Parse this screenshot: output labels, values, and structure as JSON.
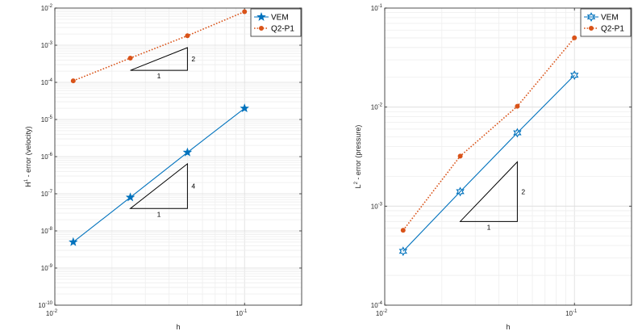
{
  "chart_data": [
    {
      "type": "line",
      "xscale": "log",
      "yscale": "log",
      "xlim": [
        0.01,
        0.2
      ],
      "ylim": [
        1e-10,
        0.01
      ],
      "grid": true,
      "xlabel": "h",
      "ylabel": "H1 - error (velocity)",
      "ylabel_base": "H",
      "ylabel_sup": "1",
      "ylabel_rest": " - error (velocity)",
      "legend_position": "top-right",
      "x_ticks": [
        {
          "mant": "10",
          "exp": "-2"
        },
        {
          "mant": "10",
          "exp": "-1"
        }
      ],
      "y_ticks": [
        {
          "mant": "10",
          "exp": "-10"
        },
        {
          "mant": "10",
          "exp": "-9"
        },
        {
          "mant": "10",
          "exp": "-8"
        },
        {
          "mant": "10",
          "exp": "-7"
        },
        {
          "mant": "10",
          "exp": "-6"
        },
        {
          "mant": "10",
          "exp": "-5"
        },
        {
          "mant": "10",
          "exp": "-4"
        },
        {
          "mant": "10",
          "exp": "-3"
        },
        {
          "mant": "10",
          "exp": "-2"
        }
      ],
      "series": [
        {
          "name": "VEM",
          "marker": "pentagram",
          "line": "solid",
          "color": "#0072BD",
          "x": [
            0.0125,
            0.025,
            0.05,
            0.1
          ],
          "y": [
            5e-09,
            8e-08,
            1.3e-06,
            2e-05
          ]
        },
        {
          "name": "Q2-P1",
          "marker": "circle",
          "line": "dotted",
          "color": "#D95319",
          "x": [
            0.0125,
            0.025,
            0.05,
            0.1
          ],
          "y": [
            0.00011,
            0.00045,
            0.0018,
            0.008
          ]
        }
      ],
      "slope_triangles": [
        {
          "x0": 0.025,
          "x1": 0.05,
          "y0": 0.00021,
          "y1": 0.00086,
          "run_label": "1",
          "rise_label": "2"
        },
        {
          "x0": 0.025,
          "x1": 0.05,
          "y0": 4e-08,
          "y1": 6.4e-07,
          "run_label": "1",
          "rise_label": "4"
        }
      ]
    },
    {
      "type": "line",
      "xscale": "log",
      "yscale": "log",
      "xlim": [
        0.01,
        0.2
      ],
      "ylim": [
        0.0001,
        0.1
      ],
      "grid": true,
      "xlabel": "h",
      "ylabel": "L2 - error (pressure)",
      "ylabel_base": "L",
      "ylabel_sup": "2",
      "ylabel_rest": " - error (pressure)",
      "legend_position": "top-right",
      "x_ticks": [
        {
          "mant": "10",
          "exp": "-2"
        },
        {
          "mant": "10",
          "exp": "-1"
        }
      ],
      "y_ticks": [
        {
          "mant": "10",
          "exp": "-4"
        },
        {
          "mant": "10",
          "exp": "-3"
        },
        {
          "mant": "10",
          "exp": "-2"
        },
        {
          "mant": "10",
          "exp": "-1"
        }
      ],
      "series": [
        {
          "name": "VEM",
          "marker": "hexagram",
          "line": "solid",
          "color": "#0072BD",
          "x": [
            0.0125,
            0.025,
            0.05,
            0.1
          ],
          "y": [
            0.00035,
            0.0014,
            0.0055,
            0.021
          ]
        },
        {
          "name": "Q2-P1",
          "marker": "circle",
          "line": "dotted",
          "color": "#D95319",
          "x": [
            0.0125,
            0.025,
            0.05,
            0.1
          ],
          "y": [
            0.00057,
            0.0032,
            0.0102,
            0.05
          ]
        }
      ],
      "slope_triangles": [
        {
          "x0": 0.025,
          "x1": 0.05,
          "y0": 0.0007,
          "y1": 0.0028,
          "run_label": "1",
          "rise_label": "2"
        }
      ]
    }
  ]
}
